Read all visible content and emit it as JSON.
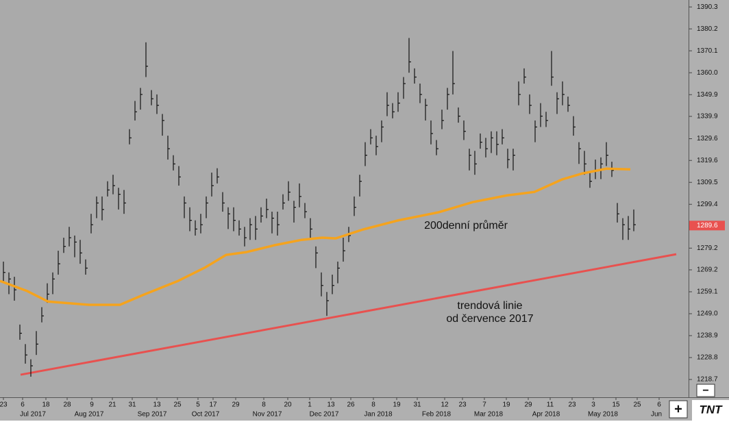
{
  "chart_data": {
    "type": "ohlc",
    "xlim": [
      -1.25,
      250
    ],
    "ylim": [
      1210.5,
      1393.5
    ],
    "yticks": [
      1390.3,
      1380.2,
      1370.1,
      {
        "value": 1360.0,
        "label": "1360.0"
      },
      1349.9,
      1339.9,
      1329.6,
      1319.6,
      1309.5,
      1299.4,
      1279.2,
      1269.2,
      1259.1,
      {
        "value": 1249.0,
        "label": "1249.0"
      },
      1238.9,
      1228.8,
      1218.7
    ],
    "xticks": [
      {
        "value": 0,
        "label": "23"
      },
      {
        "value": 7,
        "label": "6"
      },
      {
        "value": 15.5,
        "label": "18"
      },
      {
        "value": 23.25,
        "label": "28"
      },
      {
        "value": 32.25,
        "label": "9"
      },
      {
        "value": 39.75,
        "label": "21"
      },
      {
        "value": 47,
        "label": "31"
      },
      {
        "value": 56,
        "label": "13"
      },
      {
        "value": 63.5,
        "label": "25"
      },
      {
        "value": 71,
        "label": "5"
      },
      {
        "value": 76.5,
        "label": "17"
      },
      {
        "value": 84.75,
        "label": "29"
      },
      {
        "value": 95,
        "label": "8"
      },
      {
        "value": 103.75,
        "label": "20"
      },
      {
        "value": 111.75,
        "label": "1"
      },
      {
        "value": 119.5,
        "label": "13"
      },
      {
        "value": 126.75,
        "label": "26"
      },
      {
        "value": 135,
        "label": "8"
      },
      {
        "value": 143.5,
        "label": "19"
      },
      {
        "value": 151,
        "label": "31"
      },
      {
        "value": 161,
        "label": "12"
      },
      {
        "value": 167.5,
        "label": "23"
      },
      {
        "value": 175.5,
        "label": "7"
      },
      {
        "value": 183.5,
        "label": "19"
      },
      {
        "value": 191.5,
        "label": "29"
      },
      {
        "value": 199.5,
        "label": "11"
      },
      {
        "value": 207.5,
        "label": "23"
      },
      {
        "value": 215.25,
        "label": "3"
      },
      {
        "value": 223.5,
        "label": "15"
      },
      {
        "value": 231.25,
        "label": "25"
      },
      {
        "value": 239.25,
        "label": "6"
      }
    ],
    "month_ticks": [
      {
        "value": 10.75,
        "label": "Jul 2017"
      },
      {
        "value": 31.25,
        "label": "Aug 2017"
      },
      {
        "value": 54.25,
        "label": "Sep 2017"
      },
      {
        "value": 73.75,
        "label": "Oct 2017"
      },
      {
        "value": 96.25,
        "label": "Nov 2017"
      },
      {
        "value": 117,
        "label": "Dec 2017"
      },
      {
        "value": 136.75,
        "label": "Jan 2018"
      },
      {
        "value": 158,
        "label": "Feb 2018"
      },
      {
        "value": 177,
        "label": "Mar 2018"
      },
      {
        "value": 198,
        "label": "Apr 2018"
      },
      {
        "value": 218.75,
        "label": "May 2018"
      },
      {
        "value": 238.25,
        "label": "Jun"
      }
    ],
    "bar_color": "#111111",
    "bars": [
      {
        "x": 0,
        "high": 1273,
        "low": 1264,
        "close": 1268
      },
      {
        "x": 2,
        "high": 1268,
        "low": 1258,
        "close": 1265
      },
      {
        "x": 4,
        "high": 1266,
        "low": 1255,
        "close": 1260
      },
      {
        "x": 6,
        "high": 1244,
        "low": 1237,
        "close": 1240
      },
      {
        "x": 8,
        "high": 1235,
        "low": 1226,
        "close": 1230
      },
      {
        "x": 10,
        "high": 1228,
        "low": 1220,
        "close": 1225
      },
      {
        "x": 12,
        "high": 1241,
        "low": 1230,
        "close": 1235
      },
      {
        "x": 14,
        "high": 1252,
        "low": 1245,
        "close": 1248
      },
      {
        "x": 16,
        "high": 1263,
        "low": 1254,
        "close": 1258
      },
      {
        "x": 18,
        "high": 1268,
        "low": 1258,
        "close": 1265
      },
      {
        "x": 20,
        "high": 1278,
        "low": 1267,
        "close": 1272
      },
      {
        "x": 22,
        "high": 1284,
        "low": 1277,
        "close": 1280
      },
      {
        "x": 24,
        "high": 1289,
        "low": 1280,
        "close": 1284
      },
      {
        "x": 26,
        "high": 1285,
        "low": 1275,
        "close": 1282
      },
      {
        "x": 28,
        "high": 1283,
        "low": 1272,
        "close": 1277
      },
      {
        "x": 30,
        "high": 1274,
        "low": 1267,
        "close": 1270
      },
      {
        "x": 32,
        "high": 1295,
        "low": 1286,
        "close": 1290
      },
      {
        "x": 34,
        "high": 1303,
        "low": 1293,
        "close": 1300
      },
      {
        "x": 36,
        "high": 1303,
        "low": 1292,
        "close": 1297
      },
      {
        "x": 38,
        "high": 1310,
        "low": 1303,
        "close": 1306
      },
      {
        "x": 40,
        "high": 1313,
        "low": 1304,
        "close": 1308
      },
      {
        "x": 42,
        "high": 1307,
        "low": 1297,
        "close": 1304
      },
      {
        "x": 44,
        "high": 1306,
        "low": 1295,
        "close": 1300
      },
      {
        "x": 46,
        "high": 1334,
        "low": 1327,
        "close": 1330
      },
      {
        "x": 48,
        "high": 1347,
        "low": 1338,
        "close": 1342
      },
      {
        "x": 50,
        "high": 1353,
        "low": 1343,
        "close": 1350
      },
      {
        "x": 52,
        "high": 1374,
        "low": 1358,
        "close": 1363
      },
      {
        "x": 54,
        "high": 1352,
        "low": 1345,
        "close": 1348
      },
      {
        "x": 56,
        "high": 1350,
        "low": 1341,
        "close": 1345
      },
      {
        "x": 58,
        "high": 1341,
        "low": 1331,
        "close": 1338
      },
      {
        "x": 60,
        "high": 1331,
        "low": 1320,
        "close": 1325
      },
      {
        "x": 62,
        "high": 1322,
        "low": 1315,
        "close": 1318
      },
      {
        "x": 64,
        "high": 1317,
        "low": 1308,
        "close": 1312
      },
      {
        "x": 66,
        "high": 1303,
        "low": 1293,
        "close": 1300
      },
      {
        "x": 68,
        "high": 1298,
        "low": 1287,
        "close": 1292
      },
      {
        "x": 70,
        "high": 1292,
        "low": 1285,
        "close": 1288
      },
      {
        "x": 72,
        "high": 1295,
        "low": 1286,
        "close": 1290
      },
      {
        "x": 74,
        "high": 1303,
        "low": 1293,
        "close": 1300
      },
      {
        "x": 76,
        "high": 1314,
        "low": 1303,
        "close": 1308
      },
      {
        "x": 78,
        "high": 1316,
        "low": 1309,
        "close": 1312
      },
      {
        "x": 80,
        "high": 1305,
        "low": 1296,
        "close": 1300
      },
      {
        "x": 82,
        "high": 1298,
        "low": 1288,
        "close": 1295
      },
      {
        "x": 84,
        "high": 1298,
        "low": 1287,
        "close": 1292
      },
      {
        "x": 86,
        "high": 1292,
        "low": 1285,
        "close": 1288
      },
      {
        "x": 88,
        "high": 1289,
        "low": 1280,
        "close": 1284
      },
      {
        "x": 90,
        "high": 1293,
        "low": 1283,
        "close": 1290
      },
      {
        "x": 92,
        "high": 1294,
        "low": 1283,
        "close": 1288
      },
      {
        "x": 94,
        "high": 1298,
        "low": 1291,
        "close": 1294
      },
      {
        "x": 96,
        "high": 1302,
        "low": 1293,
        "close": 1297
      },
      {
        "x": 98,
        "high": 1296,
        "low": 1286,
        "close": 1293
      },
      {
        "x": 100,
        "high": 1296,
        "low": 1285,
        "close": 1290
      },
      {
        "x": 102,
        "high": 1304,
        "low": 1297,
        "close": 1300
      },
      {
        "x": 104,
        "high": 1310,
        "low": 1301,
        "close": 1305
      },
      {
        "x": 106,
        "high": 1301,
        "low": 1291,
        "close": 1298
      },
      {
        "x": 108,
        "high": 1309,
        "low": 1298,
        "close": 1303
      },
      {
        "x": 110,
        "high": 1300,
        "low": 1293,
        "close": 1296
      },
      {
        "x": 112,
        "high": 1293,
        "low": 1284,
        "close": 1288
      },
      {
        "x": 114,
        "high": 1280,
        "low": 1270,
        "close": 1277
      },
      {
        "x": 116,
        "high": 1268,
        "low": 1257,
        "close": 1262
      },
      {
        "x": 118,
        "high": 1259,
        "low": 1248,
        "close": 1255
      },
      {
        "x": 120,
        "high": 1267,
        "low": 1258,
        "close": 1262
      },
      {
        "x": 122,
        "high": 1273,
        "low": 1263,
        "close": 1270
      },
      {
        "x": 124,
        "high": 1284,
        "low": 1273,
        "close": 1278
      },
      {
        "x": 126,
        "high": 1289,
        "low": 1282,
        "close": 1285
      },
      {
        "x": 128,
        "high": 1303,
        "low": 1294,
        "close": 1298
      },
      {
        "x": 130,
        "high": 1313,
        "low": 1303,
        "close": 1310
      },
      {
        "x": 132,
        "high": 1328,
        "low": 1317,
        "close": 1322
      },
      {
        "x": 134,
        "high": 1334,
        "low": 1327,
        "close": 1330
      },
      {
        "x": 136,
        "high": 1331,
        "low": 1322,
        "close": 1326
      },
      {
        "x": 138,
        "high": 1338,
        "low": 1328,
        "close": 1335
      },
      {
        "x": 140,
        "high": 1351,
        "low": 1340,
        "close": 1345
      },
      {
        "x": 142,
        "high": 1346,
        "low": 1339,
        "close": 1342
      },
      {
        "x": 144,
        "high": 1351,
        "low": 1342,
        "close": 1346
      },
      {
        "x": 146,
        "high": 1358,
        "low": 1348,
        "close": 1355
      },
      {
        "x": 148,
        "high": 1376,
        "low": 1360,
        "close": 1365
      },
      {
        "x": 150,
        "high": 1362,
        "low": 1355,
        "close": 1358
      },
      {
        "x": 152,
        "high": 1355,
        "low": 1346,
        "close": 1350
      },
      {
        "x": 154,
        "high": 1348,
        "low": 1338,
        "close": 1345
      },
      {
        "x": 156,
        "high": 1338,
        "low": 1327,
        "close": 1332
      },
      {
        "x": 158,
        "high": 1329,
        "low": 1322,
        "close": 1325
      },
      {
        "x": 160,
        "high": 1343,
        "low": 1334,
        "close": 1338
      },
      {
        "x": 162,
        "high": 1353,
        "low": 1343,
        "close": 1350
      },
      {
        "x": 164,
        "high": 1370,
        "low": 1350,
        "close": 1355
      },
      {
        "x": 166,
        "high": 1344,
        "low": 1337,
        "close": 1340
      },
      {
        "x": 168,
        "high": 1338,
        "low": 1329,
        "close": 1333
      },
      {
        "x": 170,
        "high": 1325,
        "low": 1315,
        "close": 1322
      },
      {
        "x": 172,
        "high": 1324,
        "low": 1313,
        "close": 1318
      },
      {
        "x": 174,
        "high": 1332,
        "low": 1325,
        "close": 1328
      },
      {
        "x": 176,
        "high": 1330,
        "low": 1321,
        "close": 1325
      },
      {
        "x": 178,
        "high": 1333,
        "low": 1323,
        "close": 1330
      },
      {
        "x": 180,
        "high": 1333,
        "low": 1322,
        "close": 1327
      },
      {
        "x": 182,
        "high": 1334,
        "low": 1327,
        "close": 1330
      },
      {
        "x": 184,
        "high": 1325,
        "low": 1316,
        "close": 1320
      },
      {
        "x": 186,
        "high": 1325,
        "low": 1315,
        "close": 1322
      },
      {
        "x": 188,
        "high": 1356,
        "low": 1345,
        "close": 1350
      },
      {
        "x": 190,
        "high": 1362,
        "low": 1355,
        "close": 1358
      },
      {
        "x": 192,
        "high": 1350,
        "low": 1341,
        "close": 1345
      },
      {
        "x": 194,
        "high": 1338,
        "low": 1328,
        "close": 1335
      },
      {
        "x": 196,
        "high": 1346,
        "low": 1335,
        "close": 1340
      },
      {
        "x": 198,
        "high": 1342,
        "low": 1335,
        "close": 1338
      },
      {
        "x": 200,
        "high": 1370,
        "low": 1354,
        "close": 1358
      },
      {
        "x": 202,
        "high": 1351,
        "low": 1341,
        "close": 1348
      },
      {
        "x": 204,
        "high": 1356,
        "low": 1345,
        "close": 1350
      },
      {
        "x": 206,
        "high": 1349,
        "low": 1342,
        "close": 1345
      },
      {
        "x": 208,
        "high": 1340,
        "low": 1331,
        "close": 1335
      },
      {
        "x": 210,
        "high": 1328,
        "low": 1318,
        "close": 1325
      },
      {
        "x": 212,
        "high": 1324,
        "low": 1313,
        "close": 1318
      },
      {
        "x": 214,
        "high": 1314,
        "low": 1307,
        "close": 1310
      },
      {
        "x": 216,
        "high": 1320,
        "low": 1311,
        "close": 1315
      },
      {
        "x": 218,
        "high": 1321,
        "low": 1311,
        "close": 1318
      },
      {
        "x": 220,
        "high": 1328,
        "low": 1317,
        "close": 1322
      },
      {
        "x": 222,
        "high": 1319,
        "low": 1312,
        "close": 1315
      },
      {
        "x": 224,
        "high": 1300,
        "low": 1291,
        "close": 1295
      },
      {
        "x": 226,
        "high": 1293,
        "low": 1283,
        "close": 1290
      },
      {
        "x": 228,
        "high": 1294,
        "low": 1283,
        "close": 1288
      },
      {
        "x": 230,
        "high": 1297,
        "low": 1287,
        "close": 1290
      }
    ],
    "moving_average": {
      "color": "#f5a31d",
      "x": [
        -1.25,
        8.75,
        16.25,
        31.25,
        42.5,
        51.25,
        63.75,
        73.75,
        81.25,
        88.75,
        98.75,
        108.75,
        116.25,
        121.25,
        131.25,
        143.75,
        158.75,
        171.25,
        183.75,
        193.75,
        203.75,
        211.25,
        220,
        228.75
      ],
      "values": [
        1264.1,
        1259.4,
        1254.6,
        1253.1,
        1253.1,
        1257.8,
        1264.1,
        1270.4,
        1276.1,
        1277.4,
        1280.5,
        1283.0,
        1284.0,
        1283.7,
        1287.8,
        1291.9,
        1295.7,
        1300.4,
        1303.5,
        1305.1,
        1310.8,
        1313.6,
        1315.8,
        1315.5
      ]
    },
    "trendline": {
      "color": "#e8514f",
      "x": [
        6.25,
        245.5
      ],
      "values": [
        1220.9,
        1276.4
      ]
    },
    "last_price": 1289.6,
    "last_price_color": "#e8514f",
    "annotations": [
      "200denní průměr",
      "trendová linie",
      "od července 2017"
    ]
  },
  "controls": {
    "zoom_in": "+",
    "zoom_out": "−",
    "logo": "TNT"
  }
}
